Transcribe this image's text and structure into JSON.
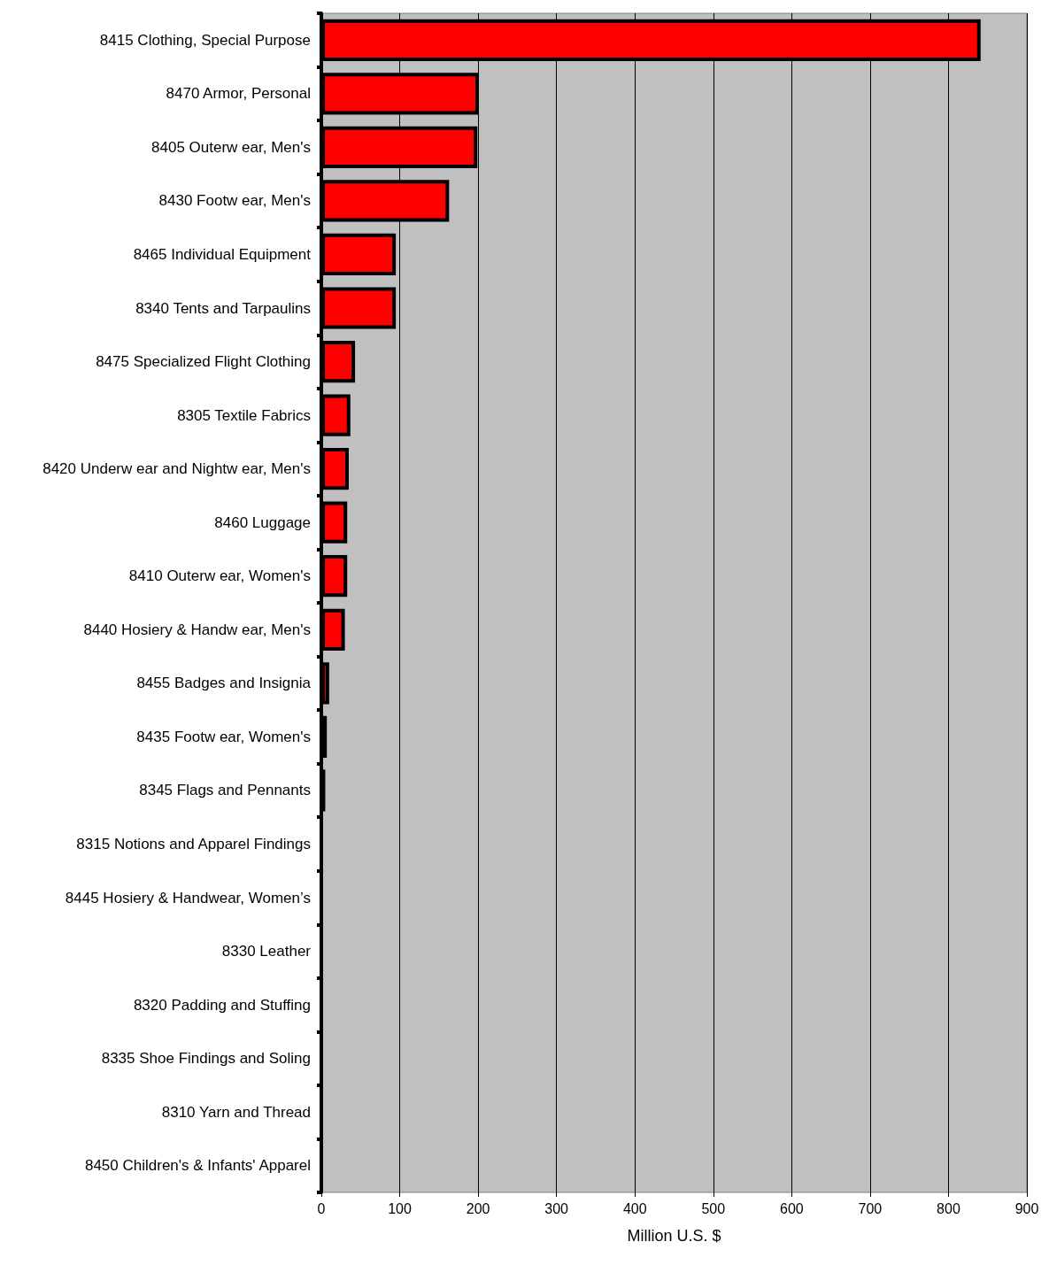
{
  "chart_data": {
    "type": "bar",
    "orientation": "horizontal",
    "xlabel": "Million U.S. $",
    "categories": [
      "8415 Clothing, Special Purpose",
      "8470 Armor, Personal",
      "8405 Outerw ear, Men's",
      "8430 Footw ear, Men's",
      "8465 Individual Equipment",
      "8340 Tents and Tarpaulins",
      "8475 Specialized Flight Clothing",
      "8305 Textile Fabrics",
      "8420 Underw ear and Nightw ear, Men's",
      "8460 Luggage",
      "8410 Outerw ear, Women's",
      "8440 Hosiery & Handw ear, Men's",
      "8455 Badges and Insignia",
      "8435 Footw ear, Women's",
      "8345 Flags and Pennants",
      "8315 Notions and Apparel Findings",
      "8445 Hosiery & Handwear, Women’s",
      "8330 Leather",
      "8320 Padding and Stuffing",
      "8335 Shoe Findings and Soling",
      "8310 Yarn and Thread",
      "8450 Children's & Infants' Apparel"
    ],
    "values": [
      841,
      201,
      199,
      163,
      95,
      95,
      43,
      37,
      35,
      33,
      33,
      30,
      10,
      7,
      5,
      0,
      0,
      0,
      0,
      0,
      0,
      0
    ],
    "color": "#ff0000",
    "xlim": [
      0,
      900
    ],
    "xticks": [
      0,
      100,
      200,
      300,
      400,
      500,
      600,
      700,
      800,
      900
    ],
    "grid": "x"
  }
}
